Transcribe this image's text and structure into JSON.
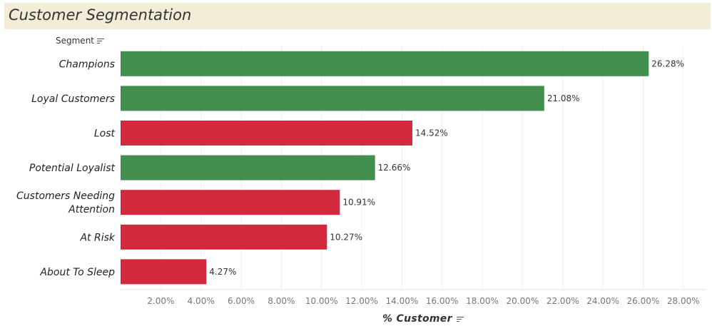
{
  "title": "Customer Segmentation",
  "segment_header": "Segment",
  "chart_data": {
    "type": "bar",
    "orientation": "horizontal",
    "title": "Customer Segmentation",
    "ylabel": "Segment",
    "xlabel": "% Customer",
    "xlim": [
      0,
      28.5
    ],
    "x_ticks": [
      "2.00%",
      "4.00%",
      "6.00%",
      "8.00%",
      "10.00%",
      "12.00%",
      "14.00%",
      "16.00%",
      "18.00%",
      "20.00%",
      "22.00%",
      "24.00%",
      "26.00%",
      "28.00%"
    ],
    "grid": true,
    "categories": [
      "Champions",
      "Loyal Customers",
      "Lost",
      "Potential Loyalist",
      "Customers Needing Attention",
      "At Risk",
      "About To Sleep"
    ],
    "values": [
      26.28,
      21.08,
      14.52,
      12.66,
      10.91,
      10.27,
      4.27
    ],
    "data_labels": [
      "26.28%",
      "21.08%",
      "14.52%",
      "12.66%",
      "10.91%",
      "10.27%",
      "4.27%"
    ],
    "colors": [
      "#428f4d",
      "#428f4d",
      "#d3293d",
      "#428f4d",
      "#d3293d",
      "#d3293d",
      "#d3293d"
    ]
  }
}
